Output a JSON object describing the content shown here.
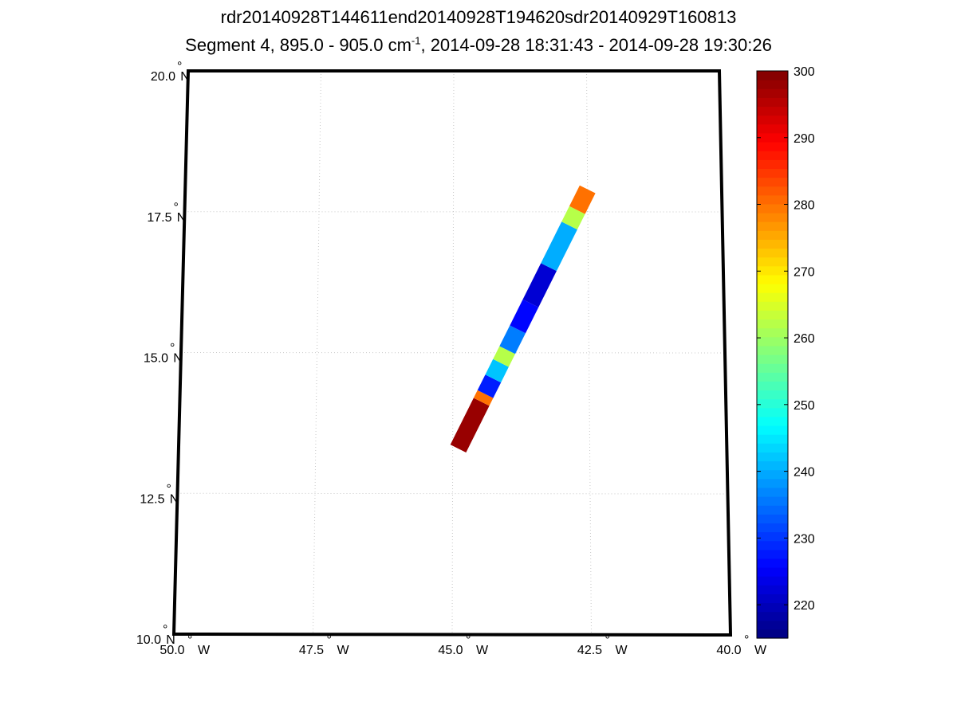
{
  "title": {
    "line1": "rdr20140928T144611end20140928T194620sdr20140929T160813",
    "line2_prefix": "Segment 4, 895.0 - 905.0 cm",
    "line2_sup": "-1",
    "line2_suffix": ", 2014-09-28 18:31:43 - 2014-09-28 19:30:26"
  },
  "chart_data": {
    "type": "heatmap",
    "projection": "map",
    "x_axis": {
      "range": [
        -50.0,
        -40.0
      ],
      "ticks": [
        -50.0,
        -47.5,
        -45.0,
        -42.5,
        -40.0
      ],
      "tick_labels": [
        "50.0",
        "47.5",
        "45.0",
        "42.5",
        "40.0"
      ],
      "hemisphere": "W"
    },
    "y_axis": {
      "range": [
        10.0,
        20.0
      ],
      "ticks": [
        10.0,
        12.5,
        15.0,
        17.5,
        20.0
      ],
      "tick_labels": [
        "10.0",
        "12.5",
        "15.0",
        "17.5",
        "20.0"
      ],
      "hemisphere": "N"
    },
    "grid": "dotted",
    "swath": {
      "start": {
        "lon": -44.9,
        "lat": 13.3
      },
      "end": {
        "lon": -42.5,
        "lat": 17.9
      },
      "segments": [
        {
          "from": 0.0,
          "to": 0.18,
          "value": 298
        },
        {
          "from": 0.18,
          "to": 0.21,
          "value": 280
        },
        {
          "from": 0.21,
          "to": 0.27,
          "value": 228
        },
        {
          "from": 0.27,
          "to": 0.33,
          "value": 242
        },
        {
          "from": 0.33,
          "to": 0.38,
          "value": 262
        },
        {
          "from": 0.38,
          "to": 0.46,
          "value": 236
        },
        {
          "from": 0.46,
          "to": 0.56,
          "value": 226
        },
        {
          "from": 0.56,
          "to": 0.7,
          "value": 222
        },
        {
          "from": 0.7,
          "to": 0.86,
          "value": 240
        },
        {
          "from": 0.86,
          "to": 0.92,
          "value": 262
        },
        {
          "from": 0.92,
          "to": 1.0,
          "value": 280
        }
      ]
    },
    "colorbar": {
      "colormap": "jet",
      "range": [
        215,
        300
      ],
      "ticks": [
        220,
        230,
        240,
        250,
        260,
        270,
        280,
        290,
        300
      ]
    }
  }
}
